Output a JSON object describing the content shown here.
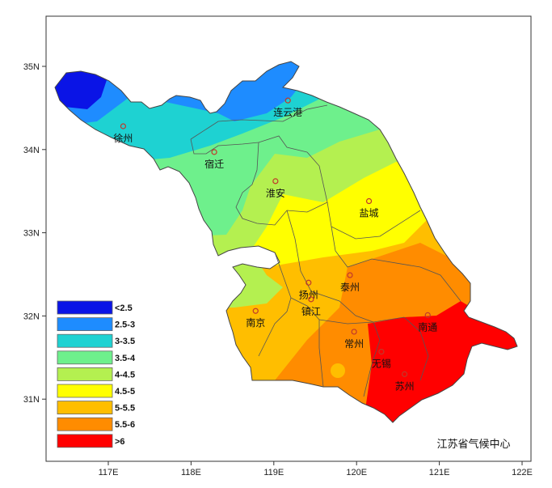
{
  "map": {
    "credit": "江苏省气候中心",
    "x_ticks": [
      {
        "value": 117,
        "label": "117E"
      },
      {
        "value": 118,
        "label": "118E"
      },
      {
        "value": 119,
        "label": "119E"
      },
      {
        "value": 120,
        "label": "120E"
      },
      {
        "value": 121,
        "label": "121E"
      },
      {
        "value": 122,
        "label": "122E"
      }
    ],
    "y_ticks": [
      {
        "value": 35,
        "label": "35N"
      },
      {
        "value": 34,
        "label": "34N"
      },
      {
        "value": 33,
        "label": "33N"
      },
      {
        "value": 32,
        "label": "32N"
      },
      {
        "value": 31,
        "label": "31N"
      }
    ],
    "cities": [
      {
        "name": "连云港",
        "lon": 119.17,
        "lat": 34.59
      },
      {
        "name": "徐州",
        "lon": 117.18,
        "lat": 34.28
      },
      {
        "name": "宿迁",
        "lon": 118.28,
        "lat": 33.97
      },
      {
        "name": "淮安",
        "lon": 119.02,
        "lat": 33.62
      },
      {
        "name": "盐城",
        "lon": 120.15,
        "lat": 33.38
      },
      {
        "name": "扬州",
        "lon": 119.42,
        "lat": 32.4
      },
      {
        "name": "泰州",
        "lon": 119.92,
        "lat": 32.49
      },
      {
        "name": "镇江",
        "lon": 119.45,
        "lat": 32.2
      },
      {
        "name": "南京",
        "lon": 118.78,
        "lat": 32.06
      },
      {
        "name": "常州",
        "lon": 119.97,
        "lat": 31.81
      },
      {
        "name": "南通",
        "lon": 120.86,
        "lat": 32.01
      },
      {
        "name": "无锡",
        "lon": 120.3,
        "lat": 31.57
      },
      {
        "name": "苏州",
        "lon": 120.58,
        "lat": 31.3
      }
    ],
    "legend": [
      {
        "label": "<2.5",
        "color": "#0a14e6"
      },
      {
        "label": "2.5-3",
        "color": "#1e8cff"
      },
      {
        "label": "3-3.5",
        "color": "#1ed2d2"
      },
      {
        "label": "3.5-4",
        "color": "#6ef08c"
      },
      {
        "label": "4-4.5",
        "color": "#b4f050"
      },
      {
        "label": "4.5-5",
        "color": "#ffff00"
      },
      {
        "label": "5-5.5",
        "color": "#ffbe00"
      },
      {
        "label": "5.5-6",
        "color": "#ff8c00"
      },
      {
        "label": ">6",
        "color": "#ff0000"
      }
    ]
  }
}
